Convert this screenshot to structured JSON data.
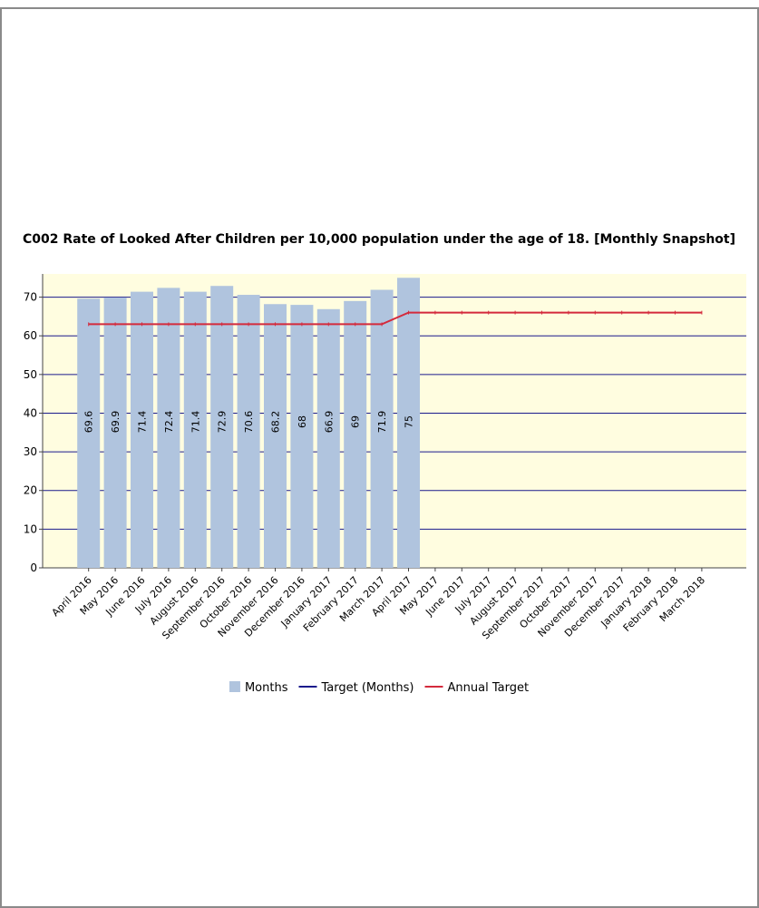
{
  "chart_data": {
    "type": "bar",
    "title": "C002 Rate of Looked After Children per 10,000 population under the age of 18. [Monthly Snapshot]",
    "categories": [
      "April 2016",
      "May 2016",
      "June 2016",
      "July 2016",
      "August 2016",
      "September 2016",
      "October 2016",
      "November 2016",
      "December 2016",
      "January 2017",
      "February 2017",
      "March 2017",
      "April 2017",
      "May 2017",
      "June 2017",
      "July 2017",
      "August 2017",
      "September 2017",
      "October 2017",
      "November 2017",
      "December 2017",
      "January 2018",
      "February 2018",
      "March 2018"
    ],
    "series": [
      {
        "name": "Months",
        "type": "bar",
        "color": "#b0c4de",
        "values": [
          69.6,
          69.9,
          71.4,
          72.4,
          71.4,
          72.9,
          70.6,
          68.2,
          68,
          66.9,
          69,
          71.9,
          75,
          null,
          null,
          null,
          null,
          null,
          null,
          null,
          null,
          null,
          null,
          null
        ]
      },
      {
        "name": "Target (Months)",
        "type": "line",
        "color": "#1a1a8c",
        "values": [
          null,
          null,
          null,
          null,
          null,
          null,
          null,
          null,
          null,
          null,
          null,
          null,
          null,
          null,
          null,
          null,
          null,
          null,
          null,
          null,
          null,
          null,
          null,
          null
        ]
      },
      {
        "name": "Annual Target",
        "type": "line",
        "color": "#d42a3c",
        "values": [
          63,
          63,
          63,
          63,
          63,
          63,
          63,
          63,
          63,
          63,
          63,
          63,
          66,
          66,
          66,
          66,
          66,
          66,
          66,
          66,
          66,
          66,
          66,
          66
        ]
      }
    ],
    "ylim": [
      0,
      76
    ],
    "yticks": [
      0,
      10,
      20,
      30,
      40,
      50,
      60,
      70
    ],
    "grid": true,
    "grid_color": "#1a1a8c",
    "plot_background": "#fffde0",
    "legend": "bottom"
  }
}
